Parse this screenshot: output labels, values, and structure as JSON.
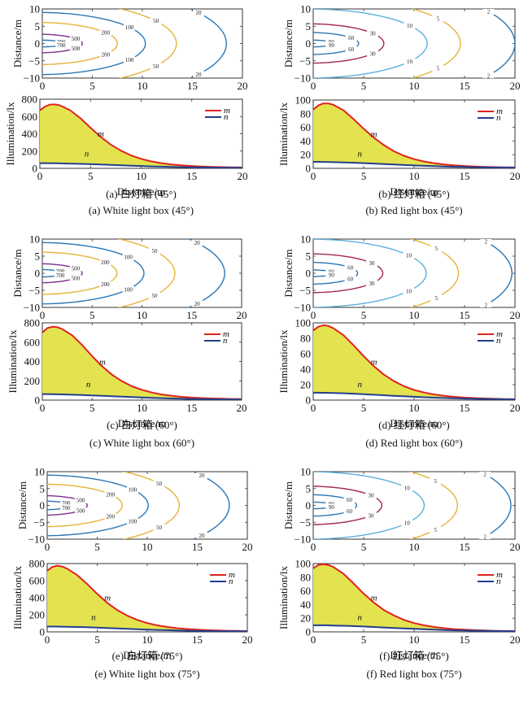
{
  "figure": {
    "panels": [
      {
        "id": "a",
        "caption_cn": "(a) 白灯箱 (45°)",
        "caption_en": "(a) White light box (45°)"
      },
      {
        "id": "b",
        "caption_cn": "(b) 红灯箱 (45°)",
        "caption_en": "(b) Red light box (45°)"
      },
      {
        "id": "c",
        "caption_cn": "(c) 白灯箱 (60°)",
        "caption_en": "(c) White light box (60°)"
      },
      {
        "id": "d",
        "caption_cn": "(d) 红灯箱 (60°)",
        "caption_en": "(d) Red light box (60°)"
      },
      {
        "id": "e",
        "caption_cn": "(e) 白灯箱 (75°)",
        "caption_en": "(e) White light box (75°)"
      },
      {
        "id": "f",
        "caption_cn": "(f) 红灯箱 (75°)",
        "caption_en": "(f) Red light box (75°)"
      }
    ]
  },
  "colors": {
    "fill": "#e3e34f",
    "m_line": "#e0231f",
    "n_line": "#233f8c",
    "contour_blue": "#2a77b6",
    "contour_yellow": "#e6b23a",
    "contour_purple": "#7e2f8e",
    "contour_crimson": "#a2264a",
    "contour_lightblue": "#5cb0dc",
    "axis": "#333333"
  },
  "chart_data": [
    {
      "panel": "a",
      "type": "contour",
      "title": "",
      "xlabel": "",
      "ylabel": "Distance/m",
      "xlim": [
        0,
        20
      ],
      "ylim": [
        -10,
        10
      ],
      "xticks": [
        "0",
        "5",
        "10",
        "15",
        "20"
      ],
      "yticks": [
        "-10",
        "-5",
        "0",
        "5",
        "10"
      ],
      "levels": [
        {
          "value": 700,
          "label": "700",
          "color": "blue",
          "x_extent": 2.3,
          "y_half": 1.0
        },
        {
          "value": 500,
          "label": "500",
          "color": "purple",
          "x_extent": 4.0,
          "y_half": 2.7
        },
        {
          "value": 200,
          "label": "200",
          "color": "yellow",
          "x_extent": 7.5,
          "y_half": 6.1
        },
        {
          "value": 100,
          "label": "100",
          "color": "blue",
          "x_extent": 10.3,
          "y_half": 9.0
        },
        {
          "value": 50,
          "label": "50",
          "color": "yellow",
          "x_extent": 13.4,
          "y_half": 12.5
        },
        {
          "value": 20,
          "label": "20",
          "color": "blue",
          "x_extent": 18.4,
          "y_half": 17.0
        }
      ]
    },
    {
      "panel": "a",
      "type": "area",
      "xlabel": "Distance/m",
      "ylabel": "Illumination/lx",
      "xlim": [
        0,
        20
      ],
      "ylim": [
        0,
        800
      ],
      "xticks": [
        "0",
        "5",
        "10",
        "15",
        "20"
      ],
      "yticks": [
        "0",
        "200",
        "400",
        "600",
        "800"
      ],
      "legend": [
        "m",
        "n"
      ],
      "legend_position": "top-right",
      "annotations": [
        "m",
        "n"
      ],
      "x": [
        0,
        0.5,
        1,
        1.5,
        2,
        3,
        4,
        5,
        6,
        7,
        8,
        9,
        10,
        11,
        12,
        13,
        14,
        15,
        16,
        17,
        18,
        19,
        20
      ],
      "series": [
        {
          "name": "m",
          "values": [
            670,
            715,
            738,
            740,
            728,
            672,
            580,
            470,
            365,
            275,
            205,
            150,
            110,
            80,
            60,
            45,
            35,
            27,
            21,
            17,
            14,
            12,
            10
          ]
        },
        {
          "name": "n",
          "values": [
            60,
            60,
            59,
            58,
            57,
            55,
            52,
            48,
            44,
            40,
            35,
            31,
            27,
            23,
            20,
            17,
            14,
            12,
            10,
            9,
            8,
            7,
            6
          ]
        }
      ]
    },
    {
      "panel": "b",
      "type": "contour",
      "ylabel": "Distance/m",
      "xlim": [
        0,
        20
      ],
      "ylim": [
        -10,
        10
      ],
      "xticks": [
        "0",
        "5",
        "10",
        "15",
        "20"
      ],
      "yticks": [
        "-10",
        "-5",
        "0",
        "5",
        "10"
      ],
      "levels": [
        {
          "value": 90,
          "label": "90",
          "color": "blue",
          "x_extent": 2.2,
          "y_half": 1.0
        },
        {
          "value": 60,
          "label": "60",
          "color": "blue",
          "x_extent": 4.5,
          "y_half": 3.2
        },
        {
          "value": 30,
          "label": "30",
          "color": "crimson",
          "x_extent": 7.0,
          "y_half": 5.7
        },
        {
          "value": 10,
          "label": "10",
          "color": "lightblue",
          "x_extent": 11.3,
          "y_half": 10.0
        },
        {
          "value": 5,
          "label": "5",
          "color": "yellow",
          "x_extent": 14.6,
          "y_half": 13.8
        },
        {
          "value": 2,
          "label": "2",
          "color": "blue",
          "x_extent": 20.0,
          "y_half": 19.0
        }
      ]
    },
    {
      "panel": "b",
      "type": "area",
      "xlabel": "Distance/m",
      "ylabel": "Illumination/lx",
      "xlim": [
        0,
        20
      ],
      "ylim": [
        0,
        100
      ],
      "xticks": [
        "0",
        "5",
        "10",
        "15",
        "20"
      ],
      "yticks": [
        "0",
        "20",
        "40",
        "60",
        "80",
        "100"
      ],
      "legend": [
        "m",
        "n"
      ],
      "legend_position": "top-right",
      "annotations": [
        "m",
        "n"
      ],
      "x": [
        0,
        0.5,
        1,
        1.5,
        2,
        3,
        4,
        5,
        6,
        7,
        8,
        9,
        10,
        11,
        12,
        13,
        14,
        15,
        16,
        17,
        18,
        19,
        20
      ],
      "series": [
        {
          "name": "m",
          "values": [
            86,
            92,
            95,
            95,
            93,
            85,
            72,
            58,
            45,
            34,
            25,
            18.5,
            13.5,
            10,
            7.5,
            5.6,
            4.3,
            3.4,
            2.7,
            2.2,
            1.8,
            1.5,
            1.3
          ]
        },
        {
          "name": "n",
          "values": [
            9.5,
            9.5,
            9.4,
            9.3,
            9.1,
            8.7,
            8.2,
            7.6,
            7.0,
            6.3,
            5.6,
            4.9,
            4.3,
            3.7,
            3.2,
            2.7,
            2.3,
            2.0,
            1.7,
            1.5,
            1.3,
            1.1,
            1.0
          ]
        }
      ]
    },
    {
      "panel": "c",
      "type": "contour",
      "ylabel": "Distance/m",
      "xlim": [
        0,
        20
      ],
      "ylim": [
        -10,
        10
      ],
      "xticks": [
        "0",
        "5",
        "10",
        "15",
        "20"
      ],
      "yticks": [
        "-10",
        "-5",
        "0",
        "5",
        "10"
      ],
      "levels": [
        {
          "value": 700,
          "label": "700",
          "color": "blue",
          "x_extent": 2.2,
          "y_half": 1.1
        },
        {
          "value": 500,
          "label": "500",
          "color": "purple",
          "x_extent": 4.0,
          "y_half": 2.8
        },
        {
          "value": 200,
          "label": "200",
          "color": "yellow",
          "x_extent": 7.5,
          "y_half": 6.2
        },
        {
          "value": 100,
          "label": "100",
          "color": "blue",
          "x_extent": 10.2,
          "y_half": 9.0
        },
        {
          "value": 50,
          "label": "50",
          "color": "yellow",
          "x_extent": 13.3,
          "y_half": 12.5
        },
        {
          "value": 20,
          "label": "20",
          "color": "blue",
          "x_extent": 18.3,
          "y_half": 17.0
        }
      ]
    },
    {
      "panel": "c",
      "type": "area",
      "xlabel": "Distance/m",
      "ylabel": "Illumination/lx",
      "xlim": [
        0,
        20
      ],
      "ylim": [
        0,
        800
      ],
      "xticks": [
        "0",
        "5",
        "10",
        "15",
        "20"
      ],
      "yticks": [
        "0",
        "200",
        "400",
        "600",
        "800"
      ],
      "legend": [
        "m",
        "n"
      ],
      "legend_position": "top-right",
      "annotations": [
        "m",
        "n"
      ],
      "x": [
        0,
        0.5,
        1,
        1.5,
        2,
        3,
        4,
        5,
        6,
        7,
        8,
        9,
        10,
        11,
        12,
        13,
        14,
        15,
        16,
        17,
        18,
        19,
        20
      ],
      "series": [
        {
          "name": "m",
          "values": [
            700,
            745,
            760,
            755,
            735,
            670,
            570,
            455,
            350,
            262,
            195,
            143,
            106,
            78,
            58,
            44,
            34,
            26,
            21,
            17,
            14,
            12,
            10
          ]
        },
        {
          "name": "n",
          "values": [
            62,
            62,
            61,
            60,
            59,
            56,
            53,
            49,
            45,
            40,
            35,
            31,
            27,
            23,
            20,
            17,
            14,
            12,
            10,
            9,
            8,
            7,
            6
          ]
        }
      ]
    },
    {
      "panel": "d",
      "type": "contour",
      "ylabel": "Distance/m",
      "xlim": [
        0,
        20
      ],
      "ylim": [
        -10,
        10
      ],
      "xticks": [
        "0",
        "5",
        "10",
        "15",
        "20"
      ],
      "yticks": [
        "-10",
        "-5",
        "0",
        "5",
        "10"
      ],
      "levels": [
        {
          "value": 90,
          "label": "90",
          "color": "blue",
          "x_extent": 2.2,
          "y_half": 1.0
        },
        {
          "value": 60,
          "label": "60",
          "color": "blue",
          "x_extent": 4.4,
          "y_half": 3.2
        },
        {
          "value": 30,
          "label": "30",
          "color": "crimson",
          "x_extent": 6.9,
          "y_half": 5.7
        },
        {
          "value": 10,
          "label": "10",
          "color": "lightblue",
          "x_extent": 11.2,
          "y_half": 10.0
        },
        {
          "value": 5,
          "label": "5",
          "color": "yellow",
          "x_extent": 14.4,
          "y_half": 13.8
        },
        {
          "value": 2,
          "label": "2",
          "color": "blue",
          "x_extent": 19.7,
          "y_half": 19.0
        }
      ]
    },
    {
      "panel": "d",
      "type": "area",
      "xlabel": "Distance/m",
      "ylabel": "Illumination/lx",
      "xlim": [
        0,
        20
      ],
      "ylim": [
        0,
        100
      ],
      "xticks": [
        "0",
        "5",
        "10",
        "15",
        "20"
      ],
      "yticks": [
        "0",
        "20",
        "40",
        "60",
        "80",
        "100"
      ],
      "legend": [
        "m",
        "n"
      ],
      "legend_position": "top-right",
      "annotations": [
        "m",
        "n"
      ],
      "x": [
        0,
        0.5,
        1,
        1.5,
        2,
        3,
        4,
        5,
        6,
        7,
        8,
        9,
        10,
        11,
        12,
        13,
        14,
        15,
        16,
        17,
        18,
        19,
        20
      ],
      "series": [
        {
          "name": "m",
          "values": [
            90,
            95,
            97,
            96,
            93,
            84,
            71,
            57,
            44,
            33,
            24.5,
            18,
            13.2,
            9.8,
            7.3,
            5.5,
            4.2,
            3.3,
            2.6,
            2.1,
            1.7,
            1.4,
            1.2
          ]
        },
        {
          "name": "n",
          "values": [
            9.6,
            9.6,
            9.5,
            9.4,
            9.2,
            8.8,
            8.3,
            7.7,
            7.0,
            6.3,
            5.6,
            4.9,
            4.3,
            3.7,
            3.2,
            2.7,
            2.3,
            2.0,
            1.7,
            1.5,
            1.3,
            1.1,
            1.0
          ]
        }
      ]
    },
    {
      "panel": "e",
      "type": "contour",
      "ylabel": "Distance/m",
      "xlim": [
        0,
        20
      ],
      "ylim": [
        -10,
        10
      ],
      "xticks": [
        "0",
        "5",
        "10",
        "15",
        "20"
      ],
      "yticks": [
        "-10",
        "-5",
        "0",
        "5",
        "10"
      ],
      "levels": [
        {
          "value": 700,
          "label": "700",
          "color": "blue",
          "x_extent": 2.3,
          "y_half": 1.3
        },
        {
          "value": 500,
          "label": "500",
          "color": "purple",
          "x_extent": 4.0,
          "y_half": 2.9
        },
        {
          "value": 200,
          "label": "200",
          "color": "yellow",
          "x_extent": 7.5,
          "y_half": 6.3
        },
        {
          "value": 100,
          "label": "100",
          "color": "blue",
          "x_extent": 10.1,
          "y_half": 9.0
        },
        {
          "value": 50,
          "label": "50",
          "color": "yellow",
          "x_extent": 13.2,
          "y_half": 12.5
        },
        {
          "value": 20,
          "label": "20",
          "color": "blue",
          "x_extent": 18.2,
          "y_half": 17.0
        }
      ]
    },
    {
      "panel": "e",
      "type": "area",
      "xlabel": "Distance/m",
      "ylabel": "Illumination/lx",
      "xlim": [
        0,
        20
      ],
      "ylim": [
        0,
        800
      ],
      "xticks": [
        "0",
        "5",
        "10",
        "15",
        "20"
      ],
      "yticks": [
        "0",
        "200",
        "400",
        "600",
        "800"
      ],
      "legend": [
        "m",
        "n"
      ],
      "legend_position": "top-right",
      "annotations": [
        "m",
        "n"
      ],
      "x": [
        0,
        0.5,
        1,
        1.5,
        2,
        3,
        4,
        5,
        6,
        7,
        8,
        9,
        10,
        11,
        12,
        13,
        14,
        15,
        16,
        17,
        18,
        19,
        20
      ],
      "series": [
        {
          "name": "m",
          "values": [
            715,
            760,
            775,
            765,
            740,
            665,
            560,
            445,
            340,
            255,
            190,
            140,
            103,
            76,
            57,
            43,
            33,
            26,
            20,
            16,
            13,
            11,
            9
          ]
        },
        {
          "name": "n",
          "values": [
            63,
            63,
            62,
            61,
            60,
            57,
            54,
            50,
            45,
            40,
            36,
            31,
            27,
            23,
            20,
            17,
            14,
            12,
            10,
            9,
            8,
            7,
            6
          ]
        }
      ]
    },
    {
      "panel": "f",
      "type": "contour",
      "ylabel": "Distance/m",
      "xlim": [
        0,
        20
      ],
      "ylim": [
        -10,
        10
      ],
      "xticks": [
        "0",
        "5",
        "10",
        "15",
        "20"
      ],
      "yticks": [
        "-10",
        "-5",
        "0",
        "5",
        "10"
      ],
      "levels": [
        {
          "value": 90,
          "label": "90",
          "color": "blue",
          "x_extent": 2.2,
          "y_half": 1.0
        },
        {
          "value": 60,
          "label": "60",
          "color": "blue",
          "x_extent": 4.3,
          "y_half": 3.2
        },
        {
          "value": 30,
          "label": "30",
          "color": "crimson",
          "x_extent": 6.8,
          "y_half": 5.7
        },
        {
          "value": 10,
          "label": "10",
          "color": "lightblue",
          "x_extent": 11.0,
          "y_half": 10.0
        },
        {
          "value": 5,
          "label": "5",
          "color": "yellow",
          "x_extent": 14.3,
          "y_half": 13.8
        },
        {
          "value": 2,
          "label": "2",
          "color": "blue",
          "x_extent": 19.6,
          "y_half": 19.0
        }
      ]
    },
    {
      "panel": "f",
      "type": "area",
      "xlabel": "Distance/m",
      "ylabel": "Illumination/lx",
      "xlim": [
        0,
        20
      ],
      "ylim": [
        0,
        100
      ],
      "xticks": [
        "0",
        "5",
        "10",
        "15",
        "20"
      ],
      "yticks": [
        "0",
        "20",
        "40",
        "60",
        "80",
        "100"
      ],
      "legend": [
        "m",
        "n"
      ],
      "legend_position": "top-right",
      "annotations": [
        "m",
        "n"
      ],
      "x": [
        0,
        0.5,
        1,
        1.5,
        2,
        3,
        4,
        5,
        6,
        7,
        8,
        9,
        10,
        11,
        12,
        13,
        14,
        15,
        16,
        17,
        18,
        19,
        20
      ],
      "series": [
        {
          "name": "m",
          "values": [
            93,
            98,
            99,
            98,
            95,
            85,
            71,
            56,
            43,
            32,
            24,
            17.5,
            12.8,
            9.5,
            7.1,
            5.3,
            4.1,
            3.2,
            2.5,
            2.0,
            1.6,
            1.3,
            1.1
          ]
        },
        {
          "name": "n",
          "values": [
            9.7,
            9.7,
            9.6,
            9.5,
            9.3,
            8.9,
            8.4,
            7.8,
            7.1,
            6.4,
            5.7,
            5.0,
            4.4,
            3.8,
            3.2,
            2.7,
            2.3,
            2.0,
            1.7,
            1.5,
            1.3,
            1.1,
            1.0
          ]
        }
      ]
    }
  ]
}
